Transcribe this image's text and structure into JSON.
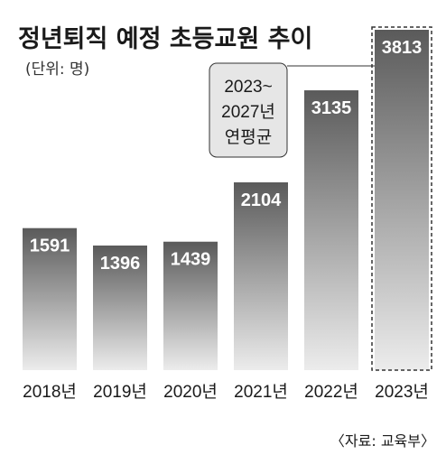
{
  "chart_data": {
    "type": "bar",
    "title": "정년퇴직 예정 초등교원 추이",
    "unit_label": "(단위: 명)",
    "categories": [
      "2018년",
      "2019년",
      "2020년",
      "2021년",
      "2022년",
      "2023년"
    ],
    "values": [
      1591,
      1396,
      1439,
      2104,
      3135,
      3813
    ],
    "value_labels": [
      "1591",
      "1396",
      "1439",
      "2104",
      "3135",
      "3813"
    ],
    "ylim": [
      0,
      3813
    ],
    "grid": false,
    "legend": "none",
    "annotation": {
      "lines": [
        "2023~",
        "2027년",
        "연평균"
      ],
      "target_category": "2023년"
    },
    "highlighted_category": "2023년",
    "source": "〈자료: 교육부〉",
    "colors": {
      "bar_top": "#5a5a5a",
      "bar_bottom": "#ececec",
      "annotation_fill": "#e6e6e6",
      "highlight_border": "#333333"
    }
  }
}
